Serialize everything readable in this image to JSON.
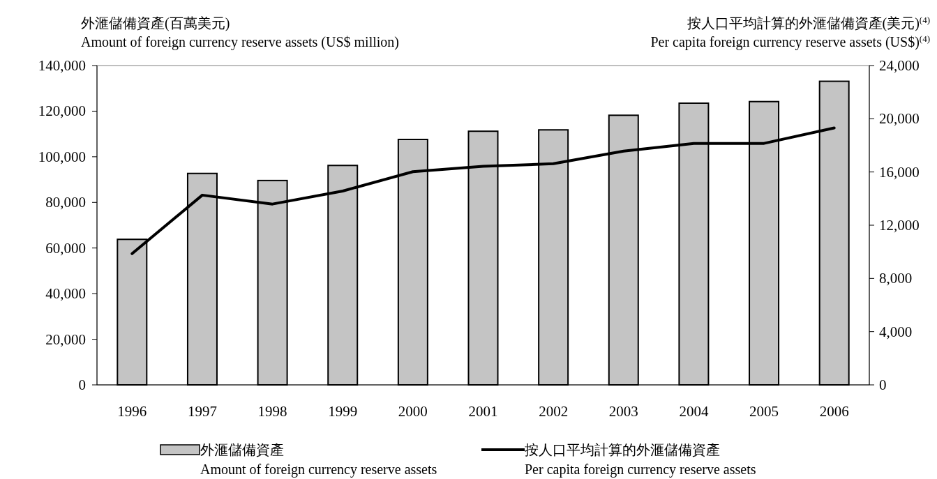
{
  "chart_data": {
    "type": "bar",
    "ylabel": "外滙儲備資產(百萬美元)\nAmount of foreign currency reserve assets (US$ million)",
    "y2label": "按人口平均計算的外滙儲備資產(美元)$^{(4)}$\nPer capita foreign currency reserve assets (US$)$^{(4)}$",
    "categories": [
      "1996",
      "1997",
      "1998",
      "1999",
      "2000",
      "2001",
      "2002",
      "2003",
      "2004",
      "2005",
      "2006"
    ],
    "series": [
      {
        "name": "外滙儲備資產\nAmount of foreign currency reserve assets",
        "color": "#c4c4c4",
        "values": [
          63800,
          92700,
          89600,
          96200,
          107600,
          111200,
          111800,
          118200,
          123500,
          124200,
          133100
        ]
      },
      {
        "name": "按人口平均計算的外滙儲備資產\nPer capita foreign currency reserve assets",
        "type": "line",
        "axis": "y2",
        "color": "#000000",
        "values": [
          9860,
          14260,
          13590,
          14570,
          16020,
          16430,
          16620,
          17570,
          18150,
          18150,
          19310
        ]
      }
    ],
    "ylim": [
      0,
      140000
    ],
    "yticks": [
      0,
      {
        "value": 20000,
        "label": "20,000"
      },
      {
        "value": 40000,
        "label": "40,000"
      },
      {
        "value": 60000,
        "label": "60,000"
      },
      {
        "value": 80000,
        "label": "80,000"
      },
      {
        "value": 100000,
        "label": "100,000"
      },
      {
        "value": 120000,
        "label": "120,000"
      },
      {
        "value": 140000,
        "label": "140,000"
      }
    ],
    "y2lim": [
      0,
      24000
    ],
    "y2ticks": [
      0,
      {
        "value": 4000,
        "label": "4,000"
      },
      {
        "value": 8000,
        "label": "8,000"
      },
      {
        "value": 12000,
        "label": "12,000"
      },
      {
        "value": 16000,
        "label": "16,000"
      },
      {
        "value": 20000,
        "label": "20,000"
      },
      {
        "value": 24000,
        "label": "24,000"
      }
    ],
    "grid": false,
    "legend": "bottom",
    "marker": "none",
    "line_style": "solid"
  }
}
